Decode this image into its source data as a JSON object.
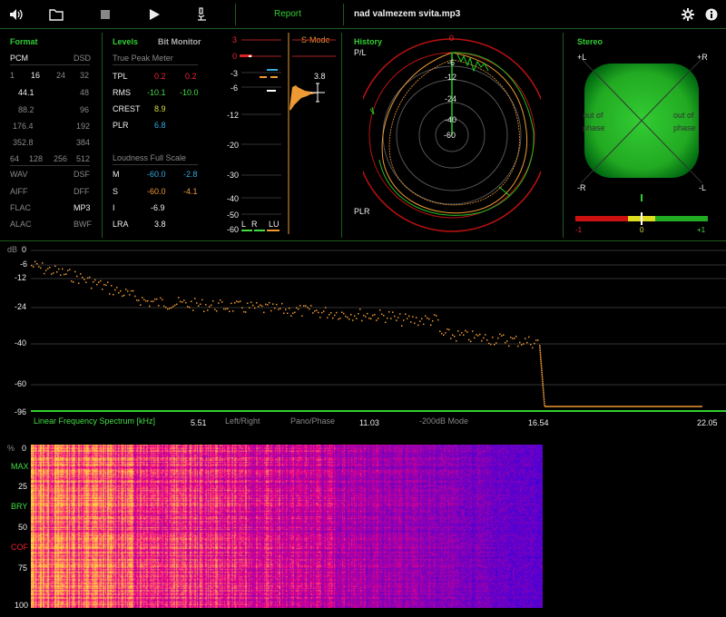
{
  "toolbar": {
    "report_label": "Report",
    "filename": "nad valmezem svita.mp3"
  },
  "format": {
    "title": "Format",
    "pcm": "PCM",
    "dsd": "DSD",
    "bits": [
      "1",
      "16",
      "24",
      "32"
    ],
    "rates": [
      [
        "44.1",
        "48"
      ],
      [
        "88.2",
        "96"
      ],
      [
        "176.4",
        "192"
      ],
      [
        "352.8",
        "384"
      ]
    ],
    "dsd_rates": [
      "64",
      "128",
      "256",
      "512"
    ],
    "types": [
      [
        "WAV",
        "DSF"
      ],
      [
        "AIFF",
        "DFF"
      ],
      [
        "FLAC",
        "MP3"
      ],
      [
        "ALAC",
        "BWF"
      ]
    ]
  },
  "levels": {
    "title": "Levels",
    "bit_monitor": "Bit Monitor",
    "true_peak_title": "True Peak Meter",
    "tpl_label": "TPL",
    "tpl_l": "0.2",
    "tpl_r": "0.2",
    "rms_label": "RMS",
    "rms_l": "-10.1",
    "rms_r": "-10.0",
    "crest_label": "CREST",
    "crest_val": "8.9",
    "plr_label": "PLR",
    "plr_val": "6.8",
    "loudness_title": "Loudness Full Scale",
    "m_label": "M",
    "m_val": "-60.0",
    "m_val2": "-2.8",
    "s_label": "S",
    "s_val": "-60.0",
    "s_val2": "-4.1",
    "i_label": "I",
    "i_val": "-6.9",
    "lra_label": "LRA",
    "lra_val": "3.8"
  },
  "meter": {
    "smode": "S-Mode",
    "scale": [
      "3",
      "0",
      "-3",
      "-6",
      "-12",
      "-20",
      "-30",
      "-40",
      "-50",
      "-60"
    ],
    "lu_value": "3.8",
    "legend": {
      "l": "L",
      "r": "R",
      "lu": "LU"
    }
  },
  "history": {
    "title": "History",
    "pl": "P/L",
    "plr": "PLR",
    "rings": [
      "0",
      "-6",
      "-12",
      "-24",
      "-40",
      "-60"
    ]
  },
  "stereo": {
    "title": "Stereo",
    "pl": "+L",
    "pr": "+R",
    "ml": "-R",
    "mr": "-L",
    "out_of_phase_l": [
      "out of",
      "phase"
    ],
    "out_of_phase_r": [
      "out of",
      "phase"
    ],
    "corr_min": "-1",
    "corr_mid": "0",
    "corr_max": "+1"
  },
  "spectrum": {
    "db_label": "dB",
    "y_ticks": [
      "0",
      "-6",
      "-12",
      "-24",
      "-40",
      "-60",
      "-96"
    ],
    "x_title": "Linear Frequency Spectrum [kHz]",
    "x_ticks": [
      "5.51",
      "11.03",
      "16.54",
      "22.05"
    ],
    "modes": [
      "Left/Right",
      "Pano/Phase",
      "-200dB Mode"
    ]
  },
  "spectrogram": {
    "pct": "%",
    "y_ticks": [
      "0",
      "25",
      "50",
      "75",
      "100"
    ],
    "markers": {
      "max": "MAX",
      "bry": "BRY",
      "cof": "COF"
    }
  }
}
